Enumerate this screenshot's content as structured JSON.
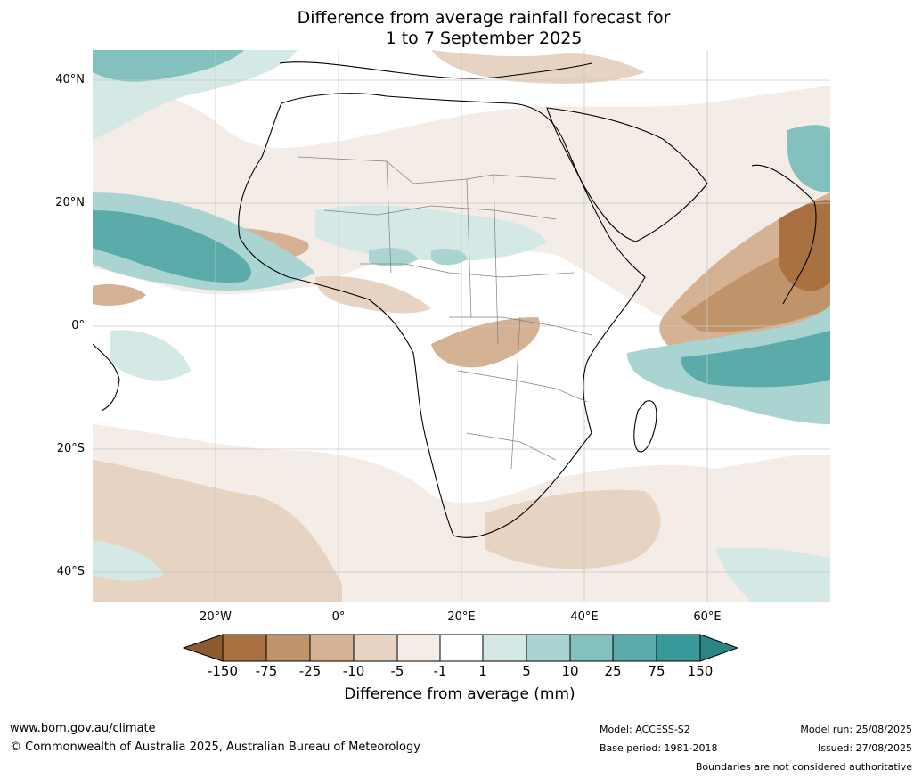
{
  "title_line1": "Difference from average rainfall forecast for",
  "title_line2": "1 to 7 September 2025",
  "lat_labels": [
    "40°N",
    "20°N",
    "0°",
    "20°S",
    "40°S"
  ],
  "lon_labels": [
    "20°W",
    "0°",
    "20°E",
    "40°E",
    "60°E"
  ],
  "legend": {
    "label": "Difference from average (mm)",
    "ticks": [
      "-150",
      "-75",
      "-25",
      "-10",
      "-5",
      "-1",
      "1",
      "5",
      "10",
      "25",
      "75",
      "150"
    ],
    "colors": [
      "#8c5a2e",
      "#a97140",
      "#c0946a",
      "#d4b293",
      "#e6d3c2",
      "#f4ece6",
      "#ffffff",
      "#d4e8e6",
      "#a9d4d2",
      "#83c1bf",
      "#5aabaa",
      "#36999a",
      "#2a8584"
    ],
    "classes": [
      {
        "range": "< -150",
        "color": "#8c5a2e"
      },
      {
        "range": "-150 to -75",
        "color": "#a97140"
      },
      {
        "range": "-75 to -25",
        "color": "#c0946a"
      },
      {
        "range": "-25 to -10",
        "color": "#d4b293"
      },
      {
        "range": "-10 to -5",
        "color": "#e6d3c2"
      },
      {
        "range": "-5 to -1",
        "color": "#f4ece6"
      },
      {
        "range": "-1 to 1",
        "color": "#ffffff"
      },
      {
        "range": "1 to 5",
        "color": "#d4e8e6"
      },
      {
        "range": "5 to 10",
        "color": "#a9d4d2"
      },
      {
        "range": "10 to 25",
        "color": "#83c1bf"
      },
      {
        "range": "25 to 75",
        "color": "#5aabaa"
      },
      {
        "range": "75 to 150",
        "color": "#36999a"
      },
      {
        "range": "> 150",
        "color": "#2a8584"
      }
    ]
  },
  "footer": {
    "website": "www.bom.gov.au/climate",
    "copyright": "© Commonwealth of Australia 2025, Australian Bureau of Meteorology",
    "model": "Model: ACCESS-S2",
    "base_period": "Base period: 1981-2018",
    "model_run": "Model run: 25/08/2025",
    "issued": "Issued: 27/08/2025",
    "boundaries_note": "Boundaries are not considered authoritative"
  }
}
